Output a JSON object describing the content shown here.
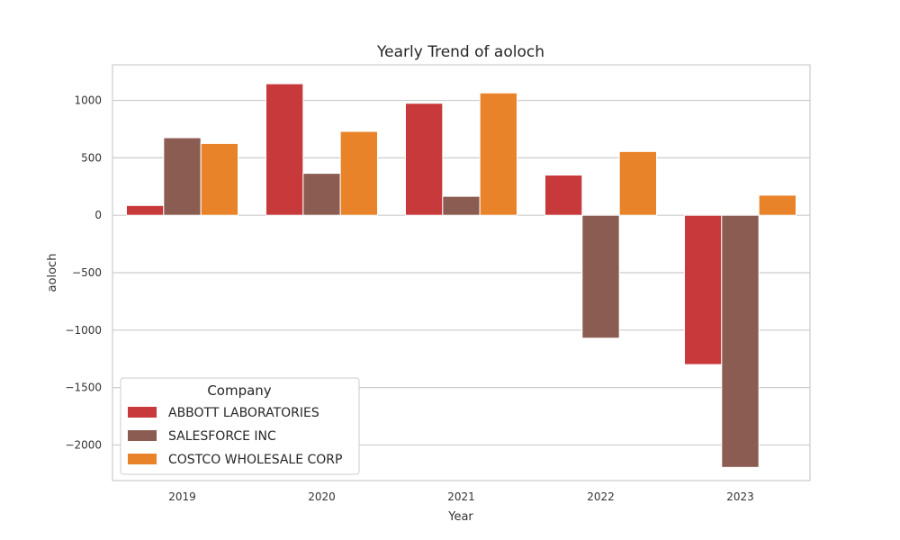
{
  "chart_data": {
    "type": "bar",
    "title": "Yearly Trend of aoloch",
    "xlabel": "Year",
    "ylabel": "aoloch",
    "categories": [
      "2019",
      "2020",
      "2021",
      "2022",
      "2023"
    ],
    "series": [
      {
        "name": "ABBOTT LABORATORIES",
        "color": "#c8393b",
        "values": [
          85,
          1145,
          975,
          350,
          -1300
        ]
      },
      {
        "name": "SALESFORCE INC",
        "color": "#8b5c51",
        "values": [
          675,
          365,
          165,
          -1070,
          -2195
        ]
      },
      {
        "name": "COSTCO WHOLESALE CORP",
        "color": "#e8832a",
        "values": [
          625,
          730,
          1065,
          555,
          175
        ]
      }
    ],
    "yticks": [
      "1000",
      "500",
      "0",
      "−500",
      "−1000",
      "−1500",
      "−2000"
    ],
    "ylim": [
      -2310,
      1310
    ],
    "grid": true,
    "legend": {
      "title": "Company",
      "placement": "bottom-left"
    }
  }
}
